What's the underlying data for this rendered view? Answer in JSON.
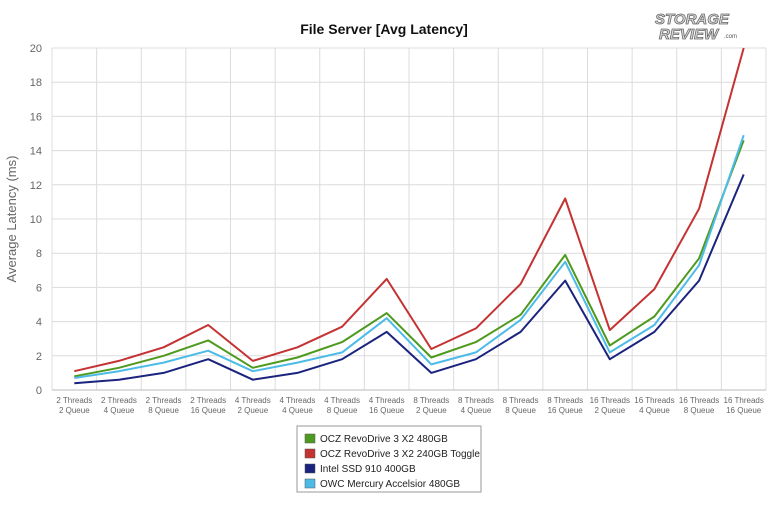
{
  "logo": {
    "line1": "STORAGE",
    "line2": "REVIEW",
    "suffix": ".com"
  },
  "chart_data": {
    "type": "line",
    "title": "File Server [Avg Latency]",
    "xlabel": "",
    "ylabel": "Average Latency (ms)",
    "ylim": [
      0,
      20
    ],
    "yticks": [
      0,
      2,
      4,
      6,
      8,
      10,
      12,
      14,
      16,
      18,
      20
    ],
    "grid": true,
    "legend_position": "bottom-center",
    "categories": [
      [
        "2 Threads",
        "2 Queue"
      ],
      [
        "2 Threads",
        "4 Queue"
      ],
      [
        "2 Threads",
        "8 Queue"
      ],
      [
        "2 Threads",
        "16 Queue"
      ],
      [
        "4 Threads",
        "2 Queue"
      ],
      [
        "4 Threads",
        "4 Queue"
      ],
      [
        "4 Threads",
        "8 Queue"
      ],
      [
        "4 Threads",
        "16 Queue"
      ],
      [
        "8 Threads",
        "2 Queue"
      ],
      [
        "8 Threads",
        "4 Queue"
      ],
      [
        "8 Threads",
        "8 Queue"
      ],
      [
        "8 Threads",
        "16 Queue"
      ],
      [
        "16 Threads",
        "2 Queue"
      ],
      [
        "16 Threads",
        "4 Queue"
      ],
      [
        "16 Threads",
        "8 Queue"
      ],
      [
        "16 Threads",
        "16 Queue"
      ]
    ],
    "series": [
      {
        "name": "OCZ RevoDrive 3 X2 480GB",
        "color": "#4e9a1e",
        "values": [
          0.8,
          1.3,
          2.0,
          2.9,
          1.3,
          1.9,
          2.8,
          4.5,
          1.9,
          2.8,
          4.4,
          7.9,
          2.6,
          4.3,
          7.7,
          14.6
        ]
      },
      {
        "name": "OCZ RevoDrive 3 X2 240GB Toggle",
        "color": "#c43232",
        "values": [
          1.1,
          1.7,
          2.5,
          3.8,
          1.7,
          2.5,
          3.7,
          6.5,
          2.4,
          3.6,
          6.2,
          11.2,
          3.5,
          5.9,
          10.6,
          20.0
        ]
      },
      {
        "name": "Intel SSD 910 400GB",
        "color": "#1a237e",
        "values": [
          0.4,
          0.6,
          1.0,
          1.8,
          0.6,
          1.0,
          1.8,
          3.4,
          1.0,
          1.8,
          3.4,
          6.4,
          1.8,
          3.4,
          6.4,
          12.6
        ]
      },
      {
        "name": "OWC Mercury Accelsior 480GB",
        "color": "#4dbbe8",
        "values": [
          0.7,
          1.1,
          1.6,
          2.3,
          1.1,
          1.6,
          2.2,
          4.2,
          1.5,
          2.2,
          4.1,
          7.5,
          2.2,
          3.8,
          7.3,
          14.9
        ]
      }
    ]
  }
}
